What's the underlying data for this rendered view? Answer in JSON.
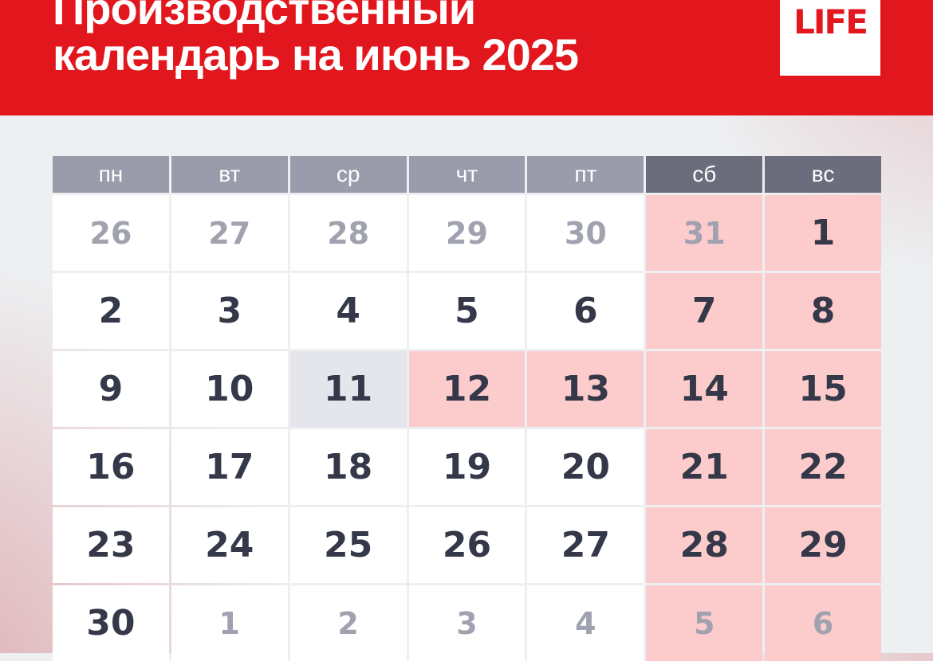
{
  "header": {
    "title_line1": "Производственный",
    "title_line2": "календарь на июнь 2025",
    "logo_text": "LIFE"
  },
  "calendar": {
    "month": "июнь 2025",
    "weekday_headers": [
      {
        "label": "пн",
        "type": "workday"
      },
      {
        "label": "вт",
        "type": "workday"
      },
      {
        "label": "ср",
        "type": "workday"
      },
      {
        "label": "чт",
        "type": "workday"
      },
      {
        "label": "пт",
        "type": "workday"
      },
      {
        "label": "сб",
        "type": "weekend"
      },
      {
        "label": "вс",
        "type": "weekend"
      }
    ],
    "weeks": [
      [
        {
          "day": "26",
          "kind": "other"
        },
        {
          "day": "27",
          "kind": "other"
        },
        {
          "day": "28",
          "kind": "other"
        },
        {
          "day": "29",
          "kind": "other"
        },
        {
          "day": "30",
          "kind": "other"
        },
        {
          "day": "31",
          "kind": "other-weekend"
        },
        {
          "day": "1",
          "kind": "weekend"
        }
      ],
      [
        {
          "day": "2",
          "kind": "workday"
        },
        {
          "day": "3",
          "kind": "workday"
        },
        {
          "day": "4",
          "kind": "workday"
        },
        {
          "day": "5",
          "kind": "workday"
        },
        {
          "day": "6",
          "kind": "workday"
        },
        {
          "day": "7",
          "kind": "weekend"
        },
        {
          "day": "8",
          "kind": "weekend"
        }
      ],
      [
        {
          "day": "9",
          "kind": "workday"
        },
        {
          "day": "10",
          "kind": "workday"
        },
        {
          "day": "11",
          "kind": "short"
        },
        {
          "day": "12",
          "kind": "holiday"
        },
        {
          "day": "13",
          "kind": "holiday"
        },
        {
          "day": "14",
          "kind": "weekend"
        },
        {
          "day": "15",
          "kind": "weekend"
        }
      ],
      [
        {
          "day": "16",
          "kind": "workday"
        },
        {
          "day": "17",
          "kind": "workday"
        },
        {
          "day": "18",
          "kind": "workday"
        },
        {
          "day": "19",
          "kind": "workday"
        },
        {
          "day": "20",
          "kind": "workday"
        },
        {
          "day": "21",
          "kind": "weekend"
        },
        {
          "day": "22",
          "kind": "weekend"
        }
      ],
      [
        {
          "day": "23",
          "kind": "workday"
        },
        {
          "day": "24",
          "kind": "workday"
        },
        {
          "day": "25",
          "kind": "workday"
        },
        {
          "day": "26",
          "kind": "workday"
        },
        {
          "day": "27",
          "kind": "workday"
        },
        {
          "day": "28",
          "kind": "weekend"
        },
        {
          "day": "29",
          "kind": "weekend"
        }
      ],
      [
        {
          "day": "30",
          "kind": "workday"
        },
        {
          "day": "1",
          "kind": "other"
        },
        {
          "day": "2",
          "kind": "other"
        },
        {
          "day": "3",
          "kind": "other"
        },
        {
          "day": "4",
          "kind": "other"
        },
        {
          "day": "5",
          "kind": "other-weekend"
        },
        {
          "day": "6",
          "kind": "other-weekend"
        }
      ]
    ]
  },
  "colors": {
    "banner_red": "#e2171e",
    "logo_red": "#e2171e",
    "weekday_bg": "#9b9cab",
    "weekend_header_bg": "#6c6d7c",
    "workday_bg": "#ffffff",
    "weekend_bg": "#fccbcb",
    "short_day_bg": "#e5e5ec",
    "day_text": "#343849",
    "other_month_text": "#a0a2af",
    "header_text": "#ffffff",
    "corner_pink": "#dfadb1",
    "corner_pink_2": "#e4c0c4"
  }
}
